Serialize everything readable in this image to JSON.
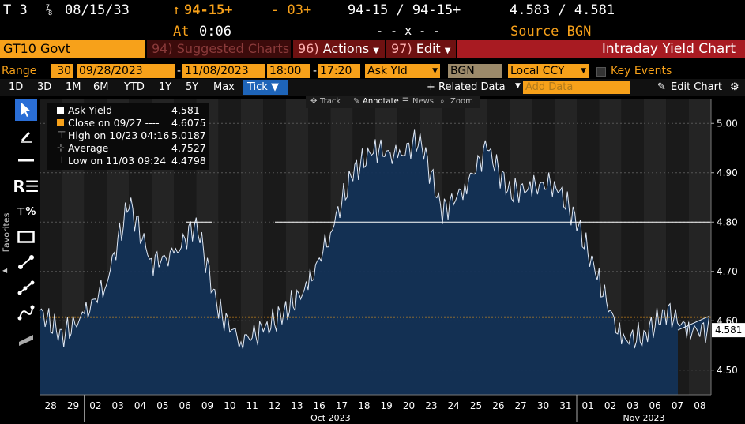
{
  "header": {
    "ticker": "T 3",
    "coupon_frac": "⅞",
    "maturity": "08/15/33",
    "price_change_arrow": "↑",
    "price": "94-15+",
    "change": "- 03+",
    "bid_ask": "94-15 / 94-15+",
    "yield_bid_ask": "4.583 / 4.581",
    "at_label": "At",
    "time": "0:06",
    "mid_placeholder": "- - x - -",
    "source": "Source BGN"
  },
  "security_bar": {
    "security": "GT10 Govt",
    "suggested_num": "94)",
    "suggested_label": "Suggested Charts",
    "actions_num": "96)",
    "actions_label": "Actions",
    "edit_num": "97)",
    "edit_label": "Edit",
    "chart_title": "Intraday Yield Chart"
  },
  "params": {
    "range_label": "Range",
    "interval": "30",
    "start_date": "09/28/2023",
    "dash": "-",
    "end_date": "11/08/2023",
    "start_time": "18:00",
    "end_time": "17:20",
    "field": "Ask Yld",
    "source": "BGN",
    "currency": "Local CCY",
    "key_events": "Key Events"
  },
  "periods": {
    "buttons": [
      "1D",
      "3D",
      "1M",
      "6M",
      "YTD",
      "1Y",
      "5Y",
      "Max"
    ],
    "tick": "Tick ▼",
    "related": "+ Related Data",
    "add_data_placeholder": "Add Data",
    "edit_chart": "Edit Chart"
  },
  "chart_toolbar": {
    "track": "Track",
    "annotate": "Annotate",
    "news": "News",
    "zoom": "Zoom"
  },
  "sidebar": {
    "favorites": "Favorites"
  },
  "legend": {
    "rows": [
      {
        "label": "Ask Yield",
        "value": "4.581"
      },
      {
        "label": "Close on 09/27 ----",
        "value": "4.6075"
      },
      {
        "label": "High on 10/23 04:16",
        "value": "5.0187"
      },
      {
        "label": "Average",
        "value": "4.7527"
      },
      {
        "label": "Low on 11/03 09:24",
        "value": "4.4798"
      }
    ]
  },
  "colors": {
    "orange": "#f7a11a",
    "dark_red": "#6e1111",
    "red": "#a81b22",
    "area_fill": "#133256",
    "selected_tab": "#1e64b8"
  },
  "chart_data": {
    "type": "area",
    "ylabel": "",
    "ylim": [
      4.45,
      5.05
    ],
    "yticks": [
      4.5,
      4.6,
      4.7,
      4.8,
      4.9,
      5.0
    ],
    "last_value": "4.581",
    "close_line": 4.6075,
    "white_line": 4.8,
    "x": [
      "28",
      "29",
      "02",
      "03",
      "04",
      "05",
      "06",
      "09",
      "10",
      "11",
      "12",
      "13",
      "16",
      "17",
      "18",
      "19",
      "20",
      "23",
      "24",
      "25",
      "26",
      "27",
      "30",
      "31",
      "01",
      "02",
      "03",
      "06",
      "07",
      "08"
    ],
    "month_labels": [
      "Oct 2023",
      "Nov 2023"
    ],
    "values": [
      4.62,
      4.57,
      4.61,
      4.68,
      4.84,
      4.72,
      4.73,
      4.8,
      4.62,
      4.56,
      4.58,
      4.62,
      4.67,
      4.78,
      4.9,
      4.95,
      4.93,
      4.97,
      4.82,
      4.87,
      4.95,
      4.86,
      4.87,
      4.88,
      4.8,
      4.68,
      4.56,
      4.57,
      4.62,
      4.581
    ]
  }
}
